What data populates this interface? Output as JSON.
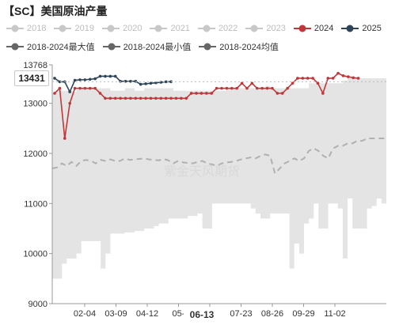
{
  "title": "【SC】美国原油产量",
  "watermark": "紫金天风期货",
  "legend": [
    {
      "label": "2018",
      "color": "#c8c8c8",
      "active": false
    },
    {
      "label": "2019",
      "color": "#c8c8c8",
      "active": false
    },
    {
      "label": "2020",
      "color": "#c8c8c8",
      "active": false
    },
    {
      "label": "2021",
      "color": "#c8c8c8",
      "active": false
    },
    {
      "label": "2022",
      "color": "#c8c8c8",
      "active": false
    },
    {
      "label": "2023",
      "color": "#c8c8c8",
      "active": false
    },
    {
      "label": "2024",
      "color": "#c0373a",
      "active": true
    },
    {
      "label": "2025",
      "color": "#2e4457",
      "active": true
    },
    {
      "label": "2018-2024最大值",
      "color": "#666666",
      "active": true
    },
    {
      "label": "2018-2024最小值",
      "color": "#666666",
      "active": true
    },
    {
      "label": "2018-2024均值",
      "color": "#666666",
      "active": true
    }
  ],
  "chart_data": {
    "type": "line",
    "y_axis": {
      "min": 9000,
      "max": 13768,
      "ticks": [
        9000,
        10000,
        11000,
        12000,
        13000,
        13768
      ]
    },
    "x_axis": {
      "ticks": [
        "02-04",
        "03-09",
        "04-12",
        "05-",
        "06-13",
        "07-23",
        "08-26",
        "09-29",
        "11-02"
      ]
    },
    "pointer": {
      "y_label": "13431",
      "x_label": "06-13"
    },
    "grid": false,
    "legend_position": "top",
    "series": [
      {
        "name": "2018-2024最大值",
        "kind": "band-top",
        "color": "#e4e4e4",
        "values": [
          13200,
          13250,
          13250,
          13250,
          13230,
          13270,
          13300,
          13300,
          13300,
          13300,
          13300,
          13300,
          13250,
          13250,
          13250,
          13300,
          13300,
          13250,
          13250,
          13300,
          13300,
          13300,
          13300,
          13300,
          13300,
          13250,
          13250,
          13250,
          13250,
          13250,
          13250,
          13250,
          13250,
          13250,
          13250,
          13250,
          13300,
          13300,
          13300,
          13300,
          13300,
          13300,
          13300,
          13300,
          13350,
          13300,
          13300,
          13300,
          13300,
          13300,
          13300,
          13300,
          13300,
          13400,
          13400,
          13400,
          13400,
          13400,
          13400,
          13400,
          13450,
          13500,
          13500,
          13500,
          13500,
          13500,
          13500,
          13500,
          13500,
          13500
        ]
      },
      {
        "name": "2018-2024最小值",
        "kind": "band-bottom",
        "color": "#e4e4e4",
        "values": [
          9500,
          9500,
          9800,
          9900,
          9900,
          10000,
          10250,
          10250,
          10250,
          10250,
          9700,
          10000,
          10400,
          10400,
          10400,
          10420,
          10420,
          10450,
          10450,
          10500,
          10500,
          10550,
          10600,
          10600,
          10700,
          10700,
          10700,
          10700,
          10750,
          10750,
          10800,
          10500,
          10500,
          11000,
          11000,
          11000,
          11000,
          11000,
          11000,
          11000,
          11000,
          10900,
          10800,
          10700,
          10700,
          10800,
          10800,
          10800,
          10800,
          9700,
          10200,
          10000,
          10600,
          10700,
          11000,
          10500,
          10500,
          11000,
          11000,
          10900,
          9900,
          11100,
          10500,
          10500,
          10500,
          10900,
          10950,
          11100,
          11000,
          11000
        ]
      },
      {
        "name": "2018-2024均值",
        "kind": "dashed",
        "color": "#b0b0b0",
        "values": [
          11700,
          11720,
          11800,
          11750,
          11830,
          11750,
          11850,
          11870,
          11850,
          11800,
          11870,
          11850,
          11880,
          11850,
          11850,
          11900,
          11870,
          11880,
          11890,
          11900,
          11880,
          11870,
          11860,
          11890,
          11860,
          11800,
          11850,
          11820,
          11810,
          11800,
          11830,
          11850,
          11800,
          11780,
          11750,
          11800,
          11820,
          11830,
          11850,
          11880,
          11900,
          11920,
          11900,
          11950,
          11980,
          11950,
          11600,
          11700,
          11800,
          11850,
          11900,
          11850,
          11900,
          12050,
          12100,
          12050,
          11950,
          11900,
          12100,
          12150,
          12150,
          12200,
          12200,
          12250,
          12250,
          12300,
          12300,
          12300,
          12300,
          12300
        ]
      },
      {
        "name": "2024",
        "kind": "line",
        "color": "#c0373a",
        "values": [
          13200,
          13300,
          12300,
          13000,
          13300,
          13300,
          13300,
          13300,
          13300,
          13200,
          13100,
          13100,
          13100,
          13100,
          13100,
          13100,
          13100,
          13100,
          13100,
          13100,
          13100,
          13100,
          13100,
          13100,
          13100,
          13100,
          13100,
          13200,
          13200,
          13200,
          13200,
          13200,
          13300,
          13300,
          13300,
          13300,
          13300,
          13400,
          13300,
          13400,
          13300,
          13300,
          13300,
          13300,
          13200,
          13200,
          13300,
          13400,
          13500,
          13500,
          13500,
          13500,
          13400,
          13200,
          13500,
          13500,
          13600,
          13550,
          13530,
          13510,
          13500
        ]
      },
      {
        "name": "2025",
        "kind": "line",
        "color": "#2e4457",
        "values": [
          13500,
          13430,
          13430,
          13230,
          13460,
          13470,
          13470,
          13480,
          13490,
          13540,
          13540,
          13540,
          13540,
          13440,
          13440,
          13440,
          13440,
          13380,
          13390,
          13400,
          13410,
          13420,
          13430,
          13431
        ]
      }
    ]
  }
}
